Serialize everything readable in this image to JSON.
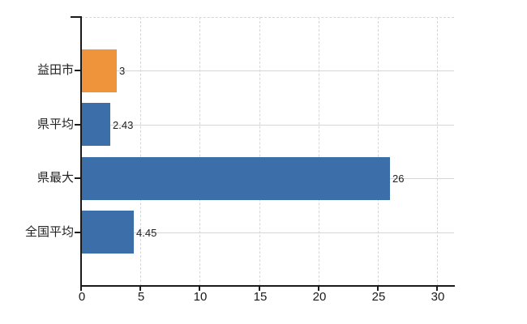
{
  "chart_data": {
    "type": "bar",
    "orientation": "horizontal",
    "title": "",
    "xlabel": "",
    "ylabel": "",
    "categories": [
      "益田市",
      "県平均",
      "県最大",
      "全国平均"
    ],
    "values": [
      3,
      2.43,
      26,
      4.45
    ],
    "value_labels": [
      "3",
      "2.43",
      "26",
      "4.45"
    ],
    "bar_colors": [
      "#F0943C",
      "#3C6FA9",
      "#3C6FA9",
      "#3C6FA9"
    ],
    "xlim": [
      0,
      31.4
    ],
    "xticks": [
      0,
      5,
      10,
      15,
      20,
      25,
      30
    ],
    "xtick_labels": [
      "0",
      "5",
      "10",
      "15",
      "20",
      "25",
      "30"
    ],
    "grid": {
      "vertical": "dashed",
      "horizontal": "solid",
      "top_border": "dashed"
    },
    "legend": "none"
  },
  "colors": {
    "highlight_bar": "#F0943C",
    "default_bar": "#3C6FA9",
    "grid": "#D6D6D6",
    "axis": "#1A1A1A",
    "text": "#222222",
    "background": "#FFFFFF"
  }
}
